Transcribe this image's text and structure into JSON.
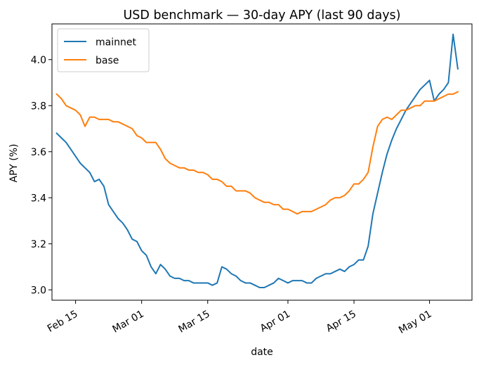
{
  "chart_data": {
    "type": "line",
    "title": "USD benchmark — 30-day APY (last 90 days)",
    "xlabel": "date",
    "ylabel": "APY (%)",
    "x_ticks": [
      "Feb 15",
      "Mar 01",
      "Mar 15",
      "Apr 01",
      "Apr 15",
      "May 01"
    ],
    "y_ticks": [
      "3.0",
      "3.2",
      "3.4",
      "3.6",
      "3.8",
      "4.0"
    ],
    "x_range": [
      "2025-02-10",
      "2025-05-10"
    ],
    "ylim": [
      2.955,
      4.155
    ],
    "grid": false,
    "legend_position": "top-left",
    "start_date": "2025-02-11",
    "series": [
      {
        "name": "mainnet",
        "color": "#1f77b4",
        "values": [
          3.68,
          3.66,
          3.64,
          3.61,
          3.58,
          3.55,
          3.53,
          3.51,
          3.47,
          3.48,
          3.45,
          3.37,
          3.34,
          3.31,
          3.29,
          3.26,
          3.22,
          3.21,
          3.17,
          3.15,
          3.1,
          3.07,
          3.11,
          3.09,
          3.06,
          3.05,
          3.05,
          3.04,
          3.04,
          3.03,
          3.03,
          3.03,
          3.03,
          3.02,
          3.03,
          3.1,
          3.09,
          3.07,
          3.06,
          3.04,
          3.03,
          3.03,
          3.02,
          3.01,
          3.01,
          3.02,
          3.03,
          3.05,
          3.04,
          3.03,
          3.04,
          3.04,
          3.04,
          3.03,
          3.03,
          3.05,
          3.06,
          3.07,
          3.07,
          3.08,
          3.09,
          3.08,
          3.1,
          3.11,
          3.13,
          3.13,
          3.19,
          3.33,
          3.42,
          3.51,
          3.59,
          3.65,
          3.7,
          3.74,
          3.78,
          3.81,
          3.84,
          3.87,
          3.89,
          3.91,
          3.82,
          3.85,
          3.87,
          3.9,
          4.11,
          3.96
        ]
      },
      {
        "name": "base",
        "color": "#ff7f0e",
        "values": [
          3.85,
          3.83,
          3.8,
          3.79,
          3.78,
          3.76,
          3.71,
          3.75,
          3.75,
          3.74,
          3.74,
          3.74,
          3.73,
          3.73,
          3.72,
          3.71,
          3.7,
          3.67,
          3.66,
          3.64,
          3.64,
          3.64,
          3.61,
          3.57,
          3.55,
          3.54,
          3.53,
          3.53,
          3.52,
          3.52,
          3.51,
          3.51,
          3.5,
          3.48,
          3.48,
          3.47,
          3.45,
          3.45,
          3.43,
          3.43,
          3.43,
          3.42,
          3.4,
          3.39,
          3.38,
          3.38,
          3.37,
          3.37,
          3.35,
          3.35,
          3.34,
          3.33,
          3.34,
          3.34,
          3.34,
          3.35,
          3.36,
          3.37,
          3.39,
          3.4,
          3.4,
          3.41,
          3.43,
          3.46,
          3.46,
          3.48,
          3.51,
          3.62,
          3.71,
          3.74,
          3.75,
          3.74,
          3.76,
          3.78,
          3.78,
          3.79,
          3.8,
          3.8,
          3.82,
          3.82,
          3.82,
          3.83,
          3.84,
          3.85,
          3.85,
          3.86
        ]
      }
    ]
  }
}
